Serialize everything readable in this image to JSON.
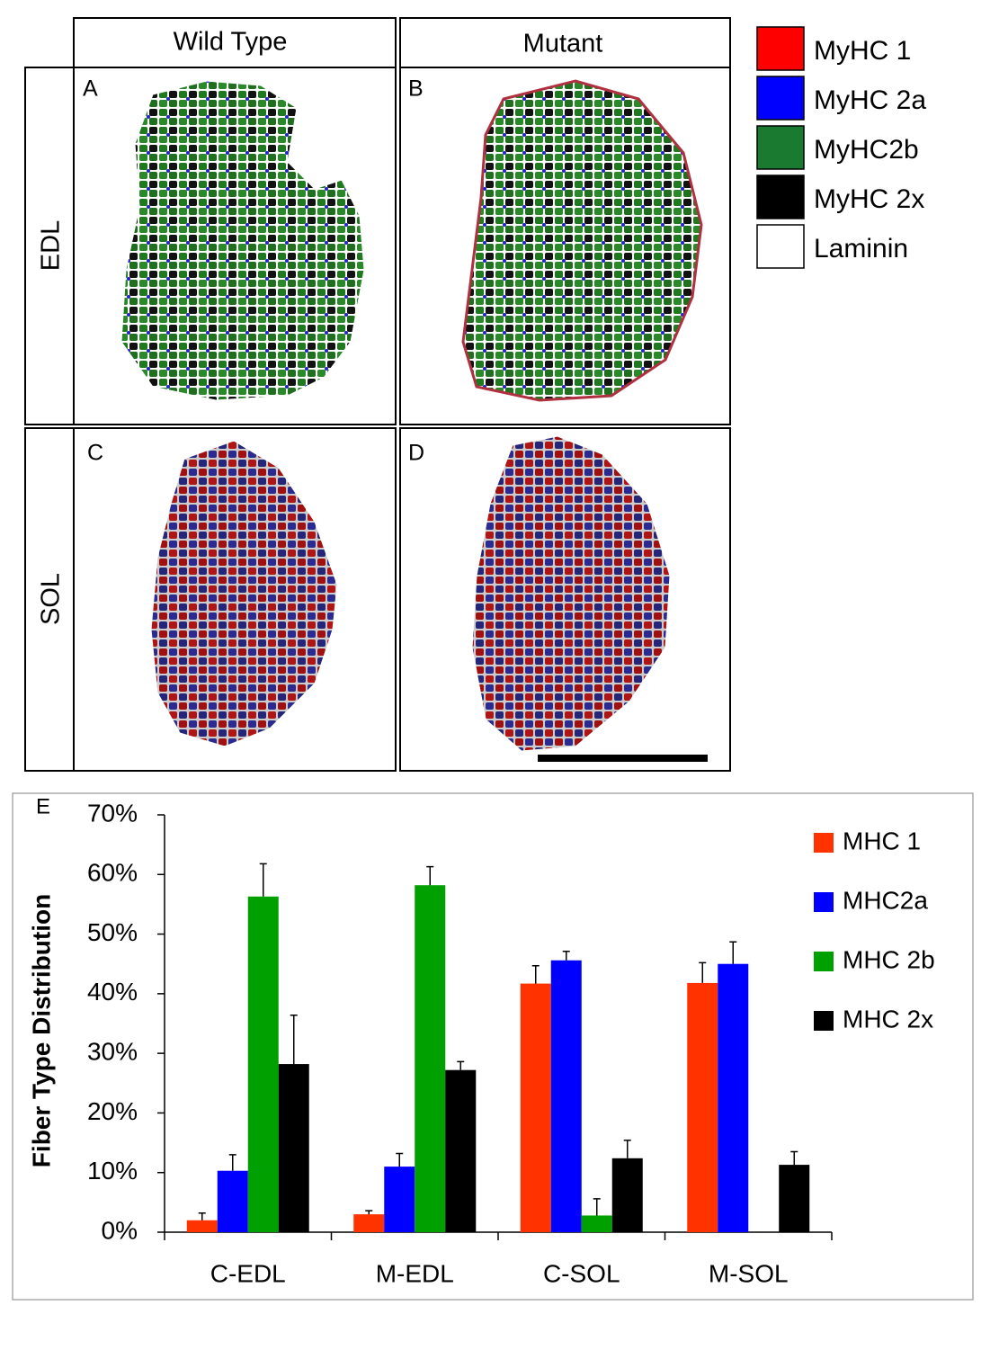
{
  "figure": {
    "columns": [
      "Wild Type",
      "Mutant"
    ],
    "rows": [
      "EDL",
      "SOL"
    ],
    "panel_letters": [
      "A",
      "B",
      "C",
      "D"
    ],
    "stain_legend": [
      {
        "name": "MyHC 1",
        "color": "#ff0000"
      },
      {
        "name": "MyHC 2a",
        "color": "#0000ff"
      },
      {
        "name": "MyHC2b",
        "color": "#1a7a30"
      },
      {
        "name": "MyHC 2x",
        "color": "#000000"
      },
      {
        "name": "Laminin",
        "color": "#ffffff"
      }
    ]
  },
  "chart_data": {
    "type": "bar",
    "panel_label": "E",
    "ylabel": "Fiber Type Distribution",
    "categories": [
      "C-EDL",
      "M-EDL",
      "C-SOL",
      "M-SOL"
    ],
    "series": [
      {
        "name": "MHC 1",
        "color": "#ff3300",
        "values": [
          2,
          3,
          41.7,
          41.8
        ],
        "errors": [
          1.2,
          0.6,
          3,
          3.4
        ]
      },
      {
        "name": "MHC2a",
        "color": "#0000ff",
        "values": [
          10.3,
          11,
          45.6,
          45
        ],
        "errors": [
          2.7,
          2.2,
          1.5,
          3.7
        ]
      },
      {
        "name": "MHC 2b",
        "color": "#00a000",
        "values": [
          56.3,
          58.2,
          2.8,
          0
        ],
        "errors": [
          5.5,
          3.1,
          2.8,
          null
        ]
      },
      {
        "name": "MHC 2x",
        "color": "#000000",
        "values": [
          28.2,
          27.2,
          12.4,
          11.3
        ],
        "errors": [
          8.2,
          1.4,
          3,
          2.2
        ]
      }
    ],
    "ylim": [
      0,
      70
    ],
    "yticks": [
      {
        "value": 0,
        "label": "0%"
      },
      {
        "value": 10,
        "label": "10%"
      },
      {
        "value": 20,
        "label": "20%"
      },
      {
        "value": 30,
        "label": "30%"
      },
      {
        "value": 40,
        "label": "40%"
      },
      {
        "value": 50,
        "label": "50%"
      },
      {
        "value": 60,
        "label": "60%"
      },
      {
        "value": 70,
        "label": "70%"
      }
    ],
    "legend": "right"
  }
}
